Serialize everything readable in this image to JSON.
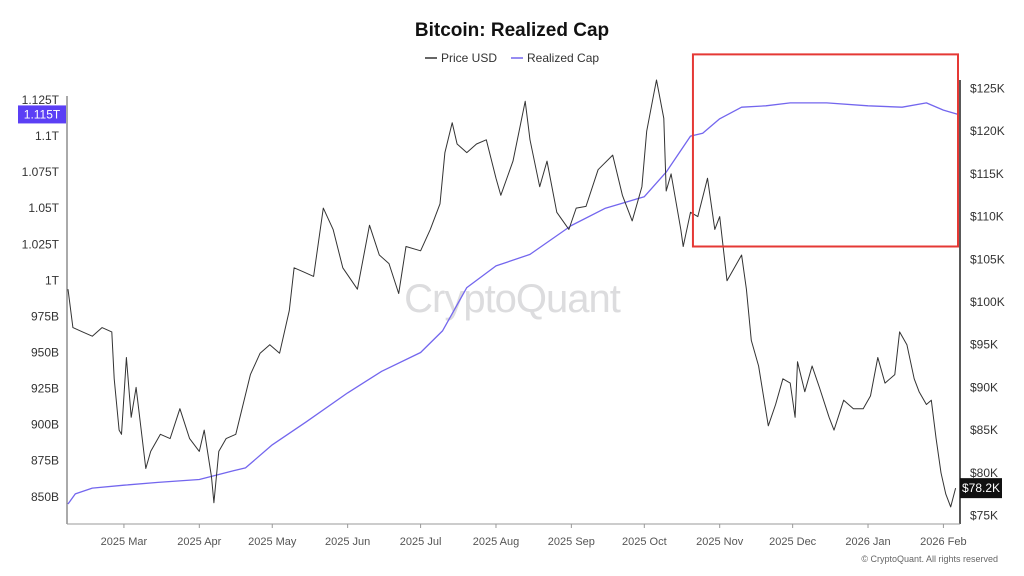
{
  "chart_data": {
    "type": "line",
    "title": "Bitcoin: Realized Cap",
    "legend": [
      {
        "name": "Price USD",
        "color": "#333333"
      },
      {
        "name": "Realized Cap",
        "color": "#7366ee"
      }
    ],
    "watermark": "CryptoQuant",
    "copyright": "© CryptoQuant. All rights reserved",
    "x_axis": {
      "start": "2025-02-06",
      "end": "2026-02-07",
      "ticks": [
        {
          "date": "2025-03-01",
          "label": "2025 Mar"
        },
        {
          "date": "2025-04-01",
          "label": "2025 Apr"
        },
        {
          "date": "2025-05-01",
          "label": "2025 May"
        },
        {
          "date": "2025-06-01",
          "label": "2025 Jun"
        },
        {
          "date": "2025-07-01",
          "label": "2025 Jul"
        },
        {
          "date": "2025-08-01",
          "label": "2025 Aug"
        },
        {
          "date": "2025-09-01",
          "label": "2025 Sep"
        },
        {
          "date": "2025-10-01",
          "label": "2025 Oct"
        },
        {
          "date": "2025-11-01",
          "label": "2025 Nov"
        },
        {
          "date": "2025-12-01",
          "label": "2025 Dec"
        },
        {
          "date": "2026-01-01",
          "label": "2026 Jan"
        },
        {
          "date": "2026-02-01",
          "label": "2026 Feb"
        }
      ]
    },
    "y_left": {
      "unit": "USD (Realized Cap)",
      "range": [
        845000000000,
        1125000000000
      ],
      "ticks": [
        {
          "value": 850000000000,
          "label": "850B"
        },
        {
          "value": 875000000000,
          "label": "875B"
        },
        {
          "value": 900000000000,
          "label": "900B"
        },
        {
          "value": 925000000000,
          "label": "925B"
        },
        {
          "value": 950000000000,
          "label": "950B"
        },
        {
          "value": 975000000000,
          "label": "975B"
        },
        {
          "value": 1000000000000,
          "label": "1T"
        },
        {
          "value": 1025000000000,
          "label": "1.025T"
        },
        {
          "value": 1050000000000,
          "label": "1.05T"
        },
        {
          "value": 1075000000000,
          "label": "1.075T"
        },
        {
          "value": 1100000000000,
          "label": "1.1T"
        },
        {
          "value": 1125000000000,
          "label": "1.125T"
        }
      ],
      "current": {
        "value": 1115000000000,
        "label": "1.115T",
        "color": "#5b3ff5"
      }
    },
    "y_right": {
      "unit": "USD (Price)",
      "range": [
        74000,
        126000
      ],
      "ticks": [
        {
          "value": 75000,
          "label": "$75K"
        },
        {
          "value": 80000,
          "label": "$80K"
        },
        {
          "value": 85000,
          "label": "$85K"
        },
        {
          "value": 90000,
          "label": "$90K"
        },
        {
          "value": 95000,
          "label": "$95K"
        },
        {
          "value": 100000,
          "label": "$100K"
        },
        {
          "value": 105000,
          "label": "$105K"
        },
        {
          "value": 110000,
          "label": "$110K"
        },
        {
          "value": 115000,
          "label": "$115K"
        },
        {
          "value": 120000,
          "label": "$120K"
        },
        {
          "value": 125000,
          "label": "$125K"
        }
      ],
      "current": {
        "value": 78200,
        "label": "$78.2K",
        "color": "#111111"
      }
    },
    "series": [
      {
        "name": "Price USD",
        "axis": "right",
        "color": "#333333",
        "points": [
          [
            "2025-02-06",
            101500
          ],
          [
            "2025-02-08",
            97000
          ],
          [
            "2025-02-12",
            96500
          ],
          [
            "2025-02-16",
            96000
          ],
          [
            "2025-02-20",
            97000
          ],
          [
            "2025-02-24",
            96500
          ],
          [
            "2025-02-25",
            91000
          ],
          [
            "2025-02-27",
            85000
          ],
          [
            "2025-02-28",
            84500
          ],
          [
            "2025-03-02",
            93500
          ],
          [
            "2025-03-04",
            86500
          ],
          [
            "2025-03-06",
            90000
          ],
          [
            "2025-03-10",
            80500
          ],
          [
            "2025-03-12",
            82500
          ],
          [
            "2025-03-16",
            84500
          ],
          [
            "2025-03-20",
            84000
          ],
          [
            "2025-03-24",
            87500
          ],
          [
            "2025-03-28",
            84000
          ],
          [
            "2025-04-01",
            82500
          ],
          [
            "2025-04-03",
            85000
          ],
          [
            "2025-04-06",
            79500
          ],
          [
            "2025-04-07",
            76500
          ],
          [
            "2025-04-09",
            82500
          ],
          [
            "2025-04-12",
            84000
          ],
          [
            "2025-04-16",
            84500
          ],
          [
            "2025-04-22",
            91500
          ],
          [
            "2025-04-26",
            94000
          ],
          [
            "2025-04-30",
            95000
          ],
          [
            "2025-05-04",
            94000
          ],
          [
            "2025-05-08",
            99000
          ],
          [
            "2025-05-10",
            104000
          ],
          [
            "2025-05-14",
            103500
          ],
          [
            "2025-05-18",
            103000
          ],
          [
            "2025-05-22",
            111000
          ],
          [
            "2025-05-26",
            108500
          ],
          [
            "2025-05-30",
            104000
          ],
          [
            "2025-06-05",
            101500
          ],
          [
            "2025-06-10",
            109000
          ],
          [
            "2025-06-14",
            105500
          ],
          [
            "2025-06-18",
            104500
          ],
          [
            "2025-06-22",
            101000
          ],
          [
            "2025-06-25",
            106500
          ],
          [
            "2025-07-01",
            106000
          ],
          [
            "2025-07-05",
            108500
          ],
          [
            "2025-07-09",
            111500
          ],
          [
            "2025-07-11",
            117500
          ],
          [
            "2025-07-14",
            121000
          ],
          [
            "2025-07-16",
            118500
          ],
          [
            "2025-07-20",
            117500
          ],
          [
            "2025-07-24",
            118500
          ],
          [
            "2025-07-28",
            119000
          ],
          [
            "2025-08-01",
            114500
          ],
          [
            "2025-08-03",
            112500
          ],
          [
            "2025-08-08",
            116500
          ],
          [
            "2025-08-13",
            123500
          ],
          [
            "2025-08-15",
            119000
          ],
          [
            "2025-08-19",
            113500
          ],
          [
            "2025-08-22",
            116500
          ],
          [
            "2025-08-26",
            110500
          ],
          [
            "2025-08-31",
            108500
          ],
          [
            "2025-09-03",
            111000
          ],
          [
            "2025-09-07",
            111200
          ],
          [
            "2025-09-12",
            115500
          ],
          [
            "2025-09-18",
            117200
          ],
          [
            "2025-09-22",
            112500
          ],
          [
            "2025-09-26",
            109500
          ],
          [
            "2025-09-30",
            113500
          ],
          [
            "2025-10-02",
            120000
          ],
          [
            "2025-10-05",
            124500
          ],
          [
            "2025-10-06",
            126000
          ],
          [
            "2025-10-09",
            121500
          ],
          [
            "2025-10-10",
            113000
          ],
          [
            "2025-10-12",
            115000
          ],
          [
            "2025-10-16",
            108500
          ],
          [
            "2025-10-17",
            106500
          ],
          [
            "2025-10-20",
            110500
          ],
          [
            "2025-10-23",
            110000
          ],
          [
            "2025-10-27",
            114500
          ],
          [
            "2025-10-30",
            108500
          ],
          [
            "2025-11-01",
            110000
          ],
          [
            "2025-11-04",
            102500
          ],
          [
            "2025-11-06",
            103500
          ],
          [
            "2025-11-10",
            105500
          ],
          [
            "2025-11-12",
            101500
          ],
          [
            "2025-11-14",
            95500
          ],
          [
            "2025-11-17",
            92500
          ],
          [
            "2025-11-21",
            85500
          ],
          [
            "2025-11-24",
            88000
          ],
          [
            "2025-11-27",
            91000
          ],
          [
            "2025-11-30",
            90500
          ],
          [
            "2025-12-02",
            86500
          ],
          [
            "2025-12-03",
            93000
          ],
          [
            "2025-12-06",
            89500
          ],
          [
            "2025-12-09",
            92500
          ],
          [
            "2025-12-12",
            90000
          ],
          [
            "2025-12-16",
            86500
          ],
          [
            "2025-12-18",
            85000
          ],
          [
            "2025-12-22",
            88500
          ],
          [
            "2025-12-26",
            87500
          ],
          [
            "2025-12-30",
            87500
          ],
          [
            "2026-01-02",
            89000
          ],
          [
            "2026-01-05",
            93500
          ],
          [
            "2026-01-08",
            90500
          ],
          [
            "2026-01-12",
            91500
          ],
          [
            "2026-01-14",
            96500
          ],
          [
            "2026-01-17",
            95000
          ],
          [
            "2026-01-20",
            91000
          ],
          [
            "2026-01-22",
            89500
          ],
          [
            "2026-01-25",
            88000
          ],
          [
            "2026-01-27",
            88500
          ],
          [
            "2026-01-29",
            84000
          ],
          [
            "2026-01-31",
            80000
          ],
          [
            "2026-02-02",
            77500
          ],
          [
            "2026-02-04",
            76000
          ],
          [
            "2026-02-06",
            78200
          ]
        ]
      },
      {
        "name": "Realized Cap",
        "axis": "left",
        "color": "#7366ee",
        "points": [
          [
            "2025-02-06",
            845000000000
          ],
          [
            "2025-02-09",
            852000000000
          ],
          [
            "2025-02-16",
            856000000000
          ],
          [
            "2025-03-01",
            858000000000
          ],
          [
            "2025-03-15",
            860000000000
          ],
          [
            "2025-04-01",
            862000000000
          ],
          [
            "2025-04-15",
            868000000000
          ],
          [
            "2025-04-20",
            870000000000
          ],
          [
            "2025-05-01",
            886000000000
          ],
          [
            "2025-05-15",
            902000000000
          ],
          [
            "2025-06-01",
            922000000000
          ],
          [
            "2025-06-15",
            937000000000
          ],
          [
            "2025-07-01",
            950000000000
          ],
          [
            "2025-07-10",
            965000000000
          ],
          [
            "2025-07-20",
            995000000000
          ],
          [
            "2025-08-01",
            1010000000000
          ],
          [
            "2025-08-15",
            1018000000000
          ],
          [
            "2025-09-01",
            1038000000000
          ],
          [
            "2025-09-15",
            1050000000000
          ],
          [
            "2025-10-01",
            1058000000000
          ],
          [
            "2025-10-10",
            1075000000000
          ],
          [
            "2025-10-20",
            1100000000000
          ],
          [
            "2025-10-25",
            1102000000000
          ],
          [
            "2025-11-01",
            1112000000000
          ],
          [
            "2025-11-10",
            1120000000000
          ],
          [
            "2025-11-20",
            1121000000000
          ],
          [
            "2025-11-30",
            1123000000000
          ],
          [
            "2025-12-15",
            1123000000000
          ],
          [
            "2026-01-01",
            1121000000000
          ],
          [
            "2026-01-15",
            1120000000000
          ],
          [
            "2026-01-25",
            1123000000000
          ],
          [
            "2026-02-01",
            1118000000000
          ],
          [
            "2026-02-07",
            1115000000000
          ]
        ]
      }
    ],
    "highlight_box": {
      "from": "2025-10-21",
      "to": "2026-02-07",
      "price_top": 129000,
      "price_bottom": 106500,
      "color": "#e53935"
    }
  }
}
